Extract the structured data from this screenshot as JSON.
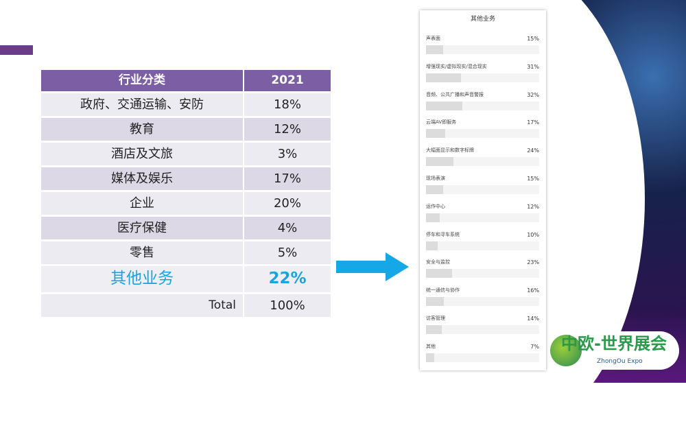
{
  "table": {
    "header": [
      "行业分类",
      "2021"
    ],
    "rows": [
      [
        "政府、交通运输、安防",
        "18%"
      ],
      [
        "教育",
        "12%"
      ],
      [
        "酒店及文旅",
        "3%"
      ],
      [
        "媒体及娱乐",
        "17%"
      ],
      [
        "企业",
        "20%"
      ],
      [
        "医疗保健",
        "4%"
      ],
      [
        "零售",
        "5%"
      ]
    ],
    "highlight": [
      "其他业务",
      "22%"
    ],
    "total": [
      "Total",
      "100%"
    ]
  },
  "panel": {
    "title": "其他业务",
    "items": [
      {
        "label": "声表面",
        "value": 15
      },
      {
        "label": "增强现实/虚拟现实/混合现实",
        "value": 31
      },
      {
        "label": "音频、公共广播和声音警报",
        "value": 32
      },
      {
        "label": "云端AV即服务",
        "value": 17
      },
      {
        "label": "大幅面显示和数字标牌",
        "value": 24
      },
      {
        "label": "现场表演",
        "value": 15
      },
      {
        "label": "运作中心",
        "value": 12
      },
      {
        "label": "停车和寻车系统",
        "value": 10
      },
      {
        "label": "安全与监控",
        "value": 23
      },
      {
        "label": "统一通信与协作",
        "value": 16
      },
      {
        "label": "访客管理",
        "value": 14
      },
      {
        "label": "其他",
        "value": 7
      }
    ]
  },
  "logo": {
    "cn": "中欧-世界展会",
    "en": "ZhongOu Expo"
  },
  "colors": {
    "header": "#7b5ea3",
    "highlight": "#1aa3e0",
    "arrow": "#16a8e6"
  }
}
